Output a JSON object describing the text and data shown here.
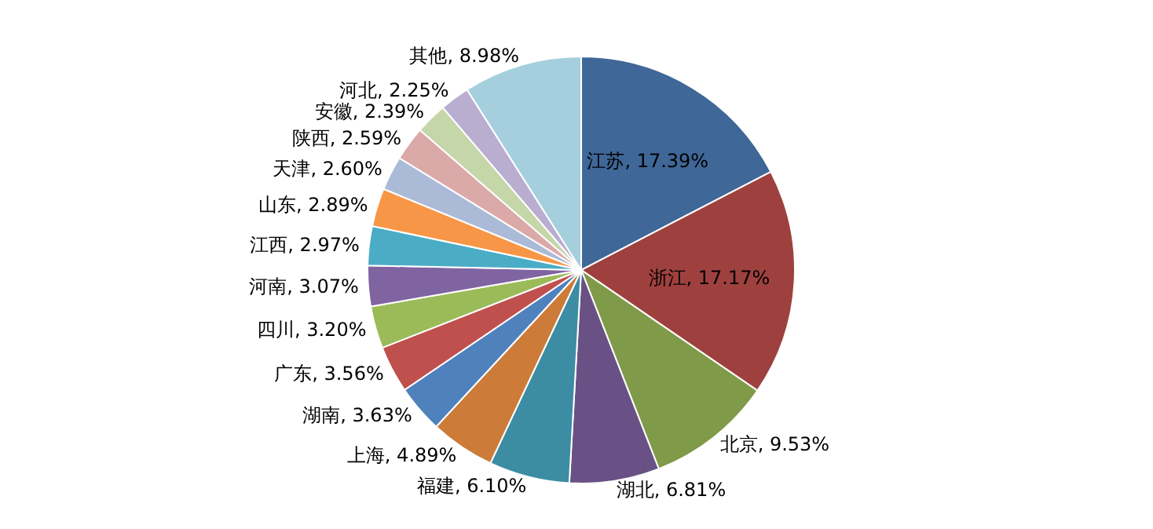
{
  "chart_data": {
    "type": "pie",
    "categories": [
      "江苏",
      "浙江",
      "北京",
      "湖北",
      "福建",
      "上海",
      "湖南",
      "广东",
      "四川",
      "河南",
      "江西",
      "山东",
      "天津",
      "陕西",
      "安徽",
      "河北",
      "其他"
    ],
    "values": [
      17.39,
      17.17,
      9.53,
      6.81,
      6.1,
      4.89,
      3.63,
      3.56,
      3.2,
      3.07,
      2.97,
      2.89,
      2.6,
      2.59,
      2.39,
      2.25,
      8.98
    ],
    "value_labels": [
      "17.39%",
      "17.17%",
      "9.53%",
      "6.81%",
      "6.10%",
      "4.89%",
      "3.63%",
      "3.56%",
      "3.20%",
      "3.07%",
      "2.97%",
      "2.89%",
      "2.60%",
      "2.59%",
      "2.39%",
      "2.25%",
      "8.98%"
    ],
    "colors": [
      "#3f6797",
      "#9e413e",
      "#7f9a48",
      "#695185",
      "#3c8da3",
      "#cc7b38",
      "#4f81bd",
      "#c0504d",
      "#9bbb59",
      "#8064a2",
      "#4bacc6",
      "#f79646",
      "#aabad7",
      "#dba9a8",
      "#c5d6a9",
      "#b9add0",
      "#a5cfdd"
    ]
  }
}
